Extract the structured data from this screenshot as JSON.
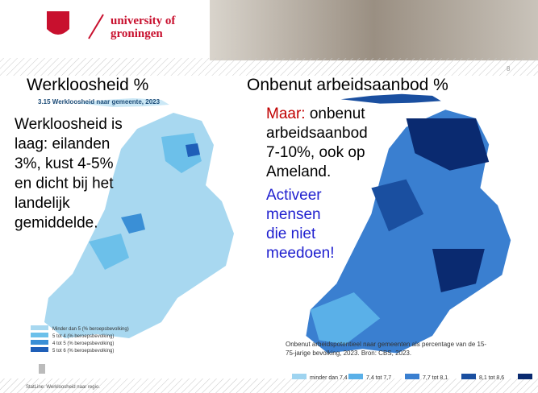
{
  "header": {
    "logo_line1": "university of",
    "logo_line2": "groningen",
    "page_number": "8"
  },
  "left": {
    "heading": "Werkloosheid %",
    "map_title": "3.15  Werkloosheid naar gemeente, 2023",
    "text_lines": [
      "Werkloosheid is",
      "laag: eilanden",
      "3%, kust 4-5%",
      "en dicht bij het",
      "landelijk",
      "gemiddelde."
    ],
    "legend": [
      "Minder dan 5 (% beroepsbevolking)",
      "5 tot 4 (% beroepsbevolking)",
      "4 tot 5 (% beroepsbevolking)",
      "5 tot 6 (% beroepsbevolking)"
    ],
    "source": "StatLine: Werkloosheid naar regio."
  },
  "right": {
    "heading": "Onbenut arbeidsaanbod %",
    "red_word": "Maar:",
    "text_lines": [
      "onbenut",
      "arbeidsaanbod",
      "7-10%, ook op",
      "Ameland."
    ],
    "blue_lines": [
      "Activeer",
      "mensen",
      "die niet",
      "meedoen!"
    ],
    "caption_lines": [
      "Onbenut arbeidspotentieel naar gemeenten als percentage van de 15-",
      "75-jarige bevolking, 2023. Bron: CBS, 2023."
    ],
    "legend": [
      "minder dan 7,4",
      "7,4 tot 7,7",
      "7,7 tot 8,1",
      "8,1 tot 8,6"
    ]
  }
}
